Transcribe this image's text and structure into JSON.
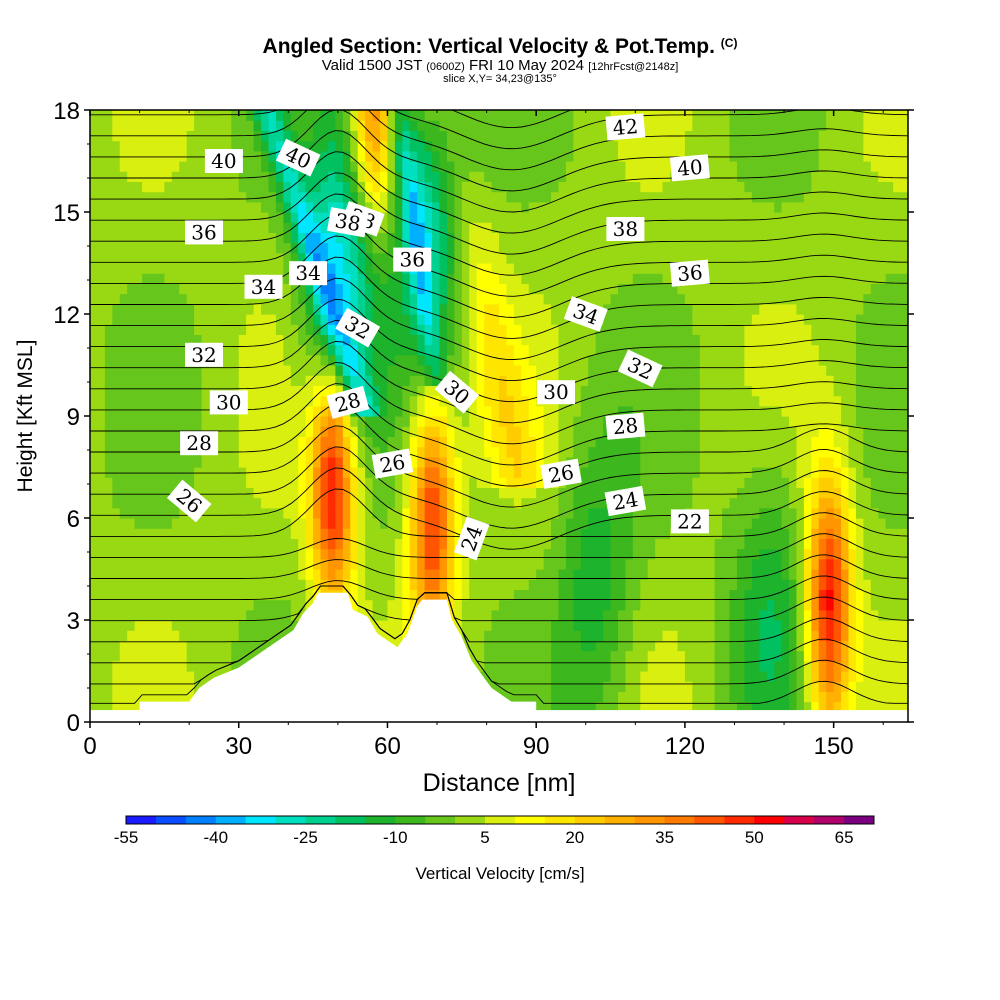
{
  "header": {
    "title": "Angled Section: Vertical Velocity & Pot.Temp.",
    "title_mark": "(C)",
    "valid_prefix": "Valid 1500 JST",
    "valid_zulu": "(0600Z)",
    "valid_date": "FRI 10 May 2024",
    "forecast_tag": "[12hrFcst@2148z]",
    "slice": "slice X,Y= 34,23@135°"
  },
  "colorbar": {
    "label": "Vertical Velocity [cm/s]",
    "tick_labels": [
      "-55",
      "-40",
      "-25",
      "-10",
      "5",
      "20",
      "35",
      "50",
      "65"
    ],
    "levels": [
      -55,
      -50,
      -45,
      -40,
      -35,
      -30,
      -25,
      -20,
      -15,
      -10,
      -5,
      0,
      5,
      10,
      15,
      20,
      25,
      30,
      35,
      40,
      45,
      50,
      55,
      60,
      65,
      70
    ],
    "colors": [
      "#1a1aff",
      "#0a4cff",
      "#0080ff",
      "#00b0ff",
      "#00e6ff",
      "#00e0c0",
      "#00d090",
      "#00c060",
      "#1db32c",
      "#3cb81e",
      "#66c61c",
      "#99d914",
      "#d9ef10",
      "#ffff00",
      "#ffe600",
      "#ffcc00",
      "#ffb000",
      "#ff9600",
      "#ff7a00",
      "#ff5500",
      "#ff2a00",
      "#ff0000",
      "#d8004a",
      "#b0006a",
      "#7a0080"
    ]
  },
  "chart_data": {
    "type": "heatmap",
    "title": "Angled Section: Vertical Velocity & Pot.Temp.",
    "xlabel": "Distance [nm]",
    "ylabel": "Height [Kft MSL]",
    "xlim": [
      0,
      165
    ],
    "ylim": [
      0,
      18
    ],
    "x_ticks": [
      0,
      30,
      60,
      90,
      120,
      150
    ],
    "y_ticks": [
      0,
      3,
      6,
      9,
      12,
      15,
      18
    ],
    "field": "Vertical Velocity [cm/s]",
    "velocity_features": [
      {
        "kind": "updraft",
        "x": 49,
        "y": 7.0,
        "peak": 50
      },
      {
        "kind": "updraft",
        "x": 69,
        "y": 6.0,
        "peak": 45
      },
      {
        "kind": "updraft",
        "x": 149,
        "y": 3.5,
        "peak": 50
      },
      {
        "kind": "updraft",
        "x": 57,
        "y": 17.5,
        "peak": 35
      },
      {
        "kind": "downdraft",
        "x": 51,
        "y": 13.5,
        "peak": -35
      },
      {
        "kind": "downdraft",
        "x": 69,
        "y": 15.5,
        "peak": -30
      },
      {
        "kind": "downdraft",
        "x": 102,
        "y": 4.0,
        "peak": -15
      },
      {
        "kind": "downdraft",
        "x": 137,
        "y": 3.5,
        "peak": -15
      }
    ],
    "terrain_profile": [
      [
        10,
        0
      ],
      [
        10,
        0.6
      ],
      [
        20,
        0.6
      ],
      [
        22,
        1.0
      ],
      [
        25,
        1.3
      ],
      [
        30,
        1.6
      ],
      [
        34,
        2.0
      ],
      [
        38,
        2.4
      ],
      [
        41,
        2.7
      ],
      [
        43,
        3.2
      ],
      [
        45,
        3.5
      ],
      [
        46,
        3.8
      ],
      [
        52,
        3.8
      ],
      [
        53,
        3.3
      ],
      [
        56,
        3.1
      ],
      [
        58,
        2.6
      ],
      [
        61,
        2.3
      ],
      [
        62,
        2.2
      ],
      [
        64,
        2.6
      ],
      [
        66,
        3.4
      ],
      [
        67,
        3.6
      ],
      [
        72,
        3.6
      ],
      [
        73,
        3.0
      ],
      [
        75,
        2.5
      ],
      [
        77,
        1.8
      ],
      [
        79,
        1.4
      ],
      [
        81,
        1.0
      ],
      [
        85,
        0.6
      ],
      [
        90,
        0.6
      ],
      [
        90,
        0
      ]
    ],
    "contour_series": {
      "name": "Pot.Temp. (C)",
      "labels": [
        {
          "value": 40,
          "x": 27,
          "y": 16.5,
          "angle": 0
        },
        {
          "value": 38,
          "x": 55,
          "y": 14.8,
          "angle": 20
        },
        {
          "value": 36,
          "x": 23,
          "y": 14.4,
          "angle": 0
        },
        {
          "value": 34,
          "x": 35,
          "y": 12.8,
          "angle": 0
        },
        {
          "value": 32,
          "x": 23,
          "y": 10.8,
          "angle": 0
        },
        {
          "value": 30,
          "x": 28,
          "y": 9.4,
          "angle": 0
        },
        {
          "value": 28,
          "x": 22,
          "y": 8.2,
          "angle": 0
        },
        {
          "value": 26,
          "x": 20,
          "y": 6.5,
          "angle": 40
        },
        {
          "value": 40,
          "x": 42,
          "y": 16.6,
          "angle": 25
        },
        {
          "value": 38,
          "x": 52,
          "y": 14.7,
          "angle": 10
        },
        {
          "value": 34,
          "x": 44,
          "y": 13.2,
          "angle": 0
        },
        {
          "value": 32,
          "x": 54,
          "y": 11.6,
          "angle": 30
        },
        {
          "value": 36,
          "x": 65,
          "y": 13.6,
          "angle": 0
        },
        {
          "value": 28,
          "x": 52,
          "y": 9.4,
          "angle": -15
        },
        {
          "value": 30,
          "x": 74,
          "y": 9.7,
          "angle": 40
        },
        {
          "value": 26,
          "x": 61,
          "y": 7.6,
          "angle": -10
        },
        {
          "value": 24,
          "x": 77,
          "y": 5.4,
          "angle": -70
        },
        {
          "value": 42,
          "x": 108,
          "y": 17.5,
          "angle": -5
        },
        {
          "value": 40,
          "x": 121,
          "y": 16.3,
          "angle": -5
        },
        {
          "value": 38,
          "x": 108,
          "y": 14.5,
          "angle": 0
        },
        {
          "value": 36,
          "x": 121,
          "y": 13.2,
          "angle": -5
        },
        {
          "value": 34,
          "x": 100,
          "y": 12.0,
          "angle": 20
        },
        {
          "value": 32,
          "x": 111,
          "y": 10.4,
          "angle": 25
        },
        {
          "value": 30,
          "x": 94,
          "y": 9.7,
          "angle": 0
        },
        {
          "value": 28,
          "x": 108,
          "y": 8.7,
          "angle": -5
        },
        {
          "value": 26,
          "x": 95,
          "y": 7.3,
          "angle": -10
        },
        {
          "value": 24,
          "x": 108,
          "y": 6.5,
          "angle": -10
        },
        {
          "value": 22,
          "x": 121,
          "y": 5.9,
          "angle": 0
        }
      ]
    }
  }
}
